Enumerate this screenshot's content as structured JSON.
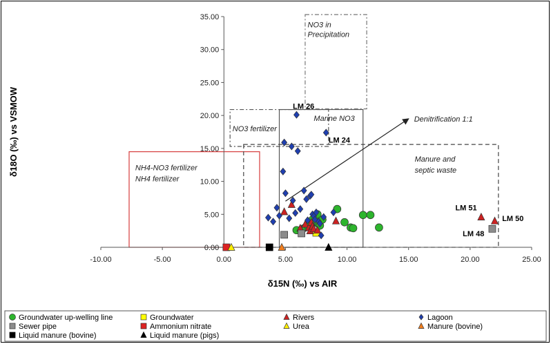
{
  "chart_data": {
    "type": "scatter",
    "xlabel": "δ15N (‰) vs AIR",
    "ylabel": "δ18O (‰) vs VSMOW",
    "xlim": [
      -10,
      25
    ],
    "ylim": [
      0,
      35
    ],
    "xticks": [
      -10,
      -5,
      0,
      5,
      10,
      15,
      20,
      25
    ],
    "xtick_labels": [
      "-10.00",
      "-5.00",
      "0.00",
      "5.00",
      "10.00",
      "15.00",
      "20.00",
      "25.00"
    ],
    "yticks": [
      0,
      5,
      10,
      15,
      20,
      25,
      30,
      35
    ],
    "ytick_labels": [
      "0.00",
      "5.00",
      "10.00",
      "15.00",
      "20.00",
      "25.00",
      "30.00",
      "35.00"
    ],
    "grid": false,
    "legend_position": "bottom",
    "regions": [
      {
        "label_lines": [
          "NO3 in",
          "Precipitation"
        ],
        "x": [
          6.6,
          11.6
        ],
        "y": [
          21.0,
          35.3
        ],
        "style": "dashdot",
        "color": "#777777"
      },
      {
        "label_lines": [
          "NO3 fertilizer"
        ],
        "x": [
          0.5,
          8.5
        ],
        "y": [
          15.3,
          20.9
        ],
        "style": "dashdot",
        "color": "#555555"
      },
      {
        "label_lines": [
          "Marine NO3"
        ],
        "x": [
          4.5,
          11.3
        ],
        "y": [
          0.0,
          20.9
        ],
        "style": "solid",
        "color": "#555555"
      },
      {
        "label_lines": [
          "NH4-NO3 fertilizer",
          "NH4  fertilizer"
        ],
        "x": [
          -7.7,
          2.9
        ],
        "y": [
          0.0,
          14.5
        ],
        "style": "solid",
        "color": "#d63b3b"
      },
      {
        "label_lines": [
          "Manure and",
          "septic waste"
        ],
        "x": [
          1.6,
          22.3
        ],
        "y": [
          0.0,
          15.6
        ],
        "style": "dashed",
        "color": "#444444"
      }
    ],
    "annotations": [
      {
        "text": "Denitrification 1:1",
        "x_from": 5.0,
        "y_from": 7.0,
        "x_to": 15.0,
        "y_to": 19.5,
        "type": "arrow"
      },
      {
        "text": "LM 26",
        "x": 5.6,
        "y": 21.0
      },
      {
        "text": "LM 24",
        "x": 8.5,
        "y": 15.9
      },
      {
        "text": "LM 51",
        "x": 18.8,
        "y": 5.6
      },
      {
        "text": "LM 50",
        "x": 22.6,
        "y": 4.0
      },
      {
        "text": "LM 48",
        "x": 19.4,
        "y": 1.7
      }
    ],
    "series": [
      {
        "name": "Groundwater up-welling line",
        "marker": "circle",
        "color": "#2db52d",
        "x": [
          5.9,
          6.4,
          6.6,
          6.8,
          7.0,
          7.2,
          7.4,
          7.5,
          7.6,
          7.7,
          7.8,
          8.0,
          9.2,
          9.8,
          10.3,
          10.5,
          11.3,
          11.9,
          12.6
        ],
        "y": [
          2.6,
          2.8,
          3.0,
          3.3,
          3.6,
          4.2,
          3.8,
          4.6,
          5.0,
          3.5,
          3.3,
          4.2,
          5.8,
          3.8,
          3.0,
          2.9,
          4.9,
          4.9,
          3.0
        ]
      },
      {
        "name": "Groundwater",
        "marker": "square",
        "color": "#ffff00",
        "x": [
          7.5
        ],
        "y": [
          2.2
        ]
      },
      {
        "name": "Rivers",
        "marker": "triangle",
        "color": "#cc2222",
        "x": [
          4.9,
          5.5,
          6.2,
          6.6,
          6.9,
          7.0,
          7.1,
          7.2,
          7.3,
          7.6,
          9.1,
          20.9,
          22.0
        ],
        "y": [
          5.4,
          6.5,
          2.9,
          3.5,
          3.0,
          2.5,
          3.8,
          3.2,
          2.8,
          2.6,
          4.0,
          4.6,
          4.0
        ]
      },
      {
        "name": "Lagoon",
        "marker": "diamond",
        "color": "#1f3fb0",
        "x": [
          3.6,
          4.0,
          4.3,
          4.5,
          4.8,
          4.9,
          5.0,
          5.3,
          5.5,
          5.6,
          5.8,
          5.9,
          6.0,
          6.2,
          6.5,
          6.7,
          6.8,
          7.0,
          7.1,
          7.2,
          7.3,
          7.4,
          7.5,
          7.7,
          7.8,
          7.9,
          8.1,
          8.3,
          8.9
        ],
        "y": [
          4.5,
          3.9,
          6.0,
          4.8,
          11.5,
          15.9,
          8.2,
          4.4,
          15.3,
          7.1,
          5.2,
          20.1,
          14.6,
          5.8,
          8.6,
          7.3,
          4.1,
          7.8,
          8.0,
          5.0,
          4.7,
          4.2,
          5.3,
          3.9,
          3.6,
          1.8,
          4.6,
          17.4,
          5.3
        ]
      },
      {
        "name": "Sewer pipe",
        "marker": "square",
        "color": "#8c8c8c",
        "x": [
          4.9,
          6.3,
          21.8
        ],
        "y": [
          1.9,
          2.1,
          2.8
        ]
      },
      {
        "name": "Ammonium nitrate",
        "marker": "square",
        "color": "#dd2222",
        "x": [
          0.2
        ],
        "y": [
          0.0
        ]
      },
      {
        "name": "Urea",
        "marker": "triangle",
        "color": "#ffee00",
        "x": [
          0.6
        ],
        "y": [
          0.0
        ]
      },
      {
        "name": "Manure (bovine)",
        "marker": "triangle",
        "color": "#f07d1e",
        "x": [
          4.7
        ],
        "y": [
          0.0
        ]
      },
      {
        "name": "Liquid manure (bovine)",
        "marker": "square",
        "color": "#000000",
        "x": [
          3.7
        ],
        "y": [
          0.0
        ]
      },
      {
        "name": "Liquid manure (pigs)",
        "marker": "triangle",
        "color": "#000000",
        "x": [
          8.5
        ],
        "y": [
          0.0
        ]
      }
    ]
  }
}
